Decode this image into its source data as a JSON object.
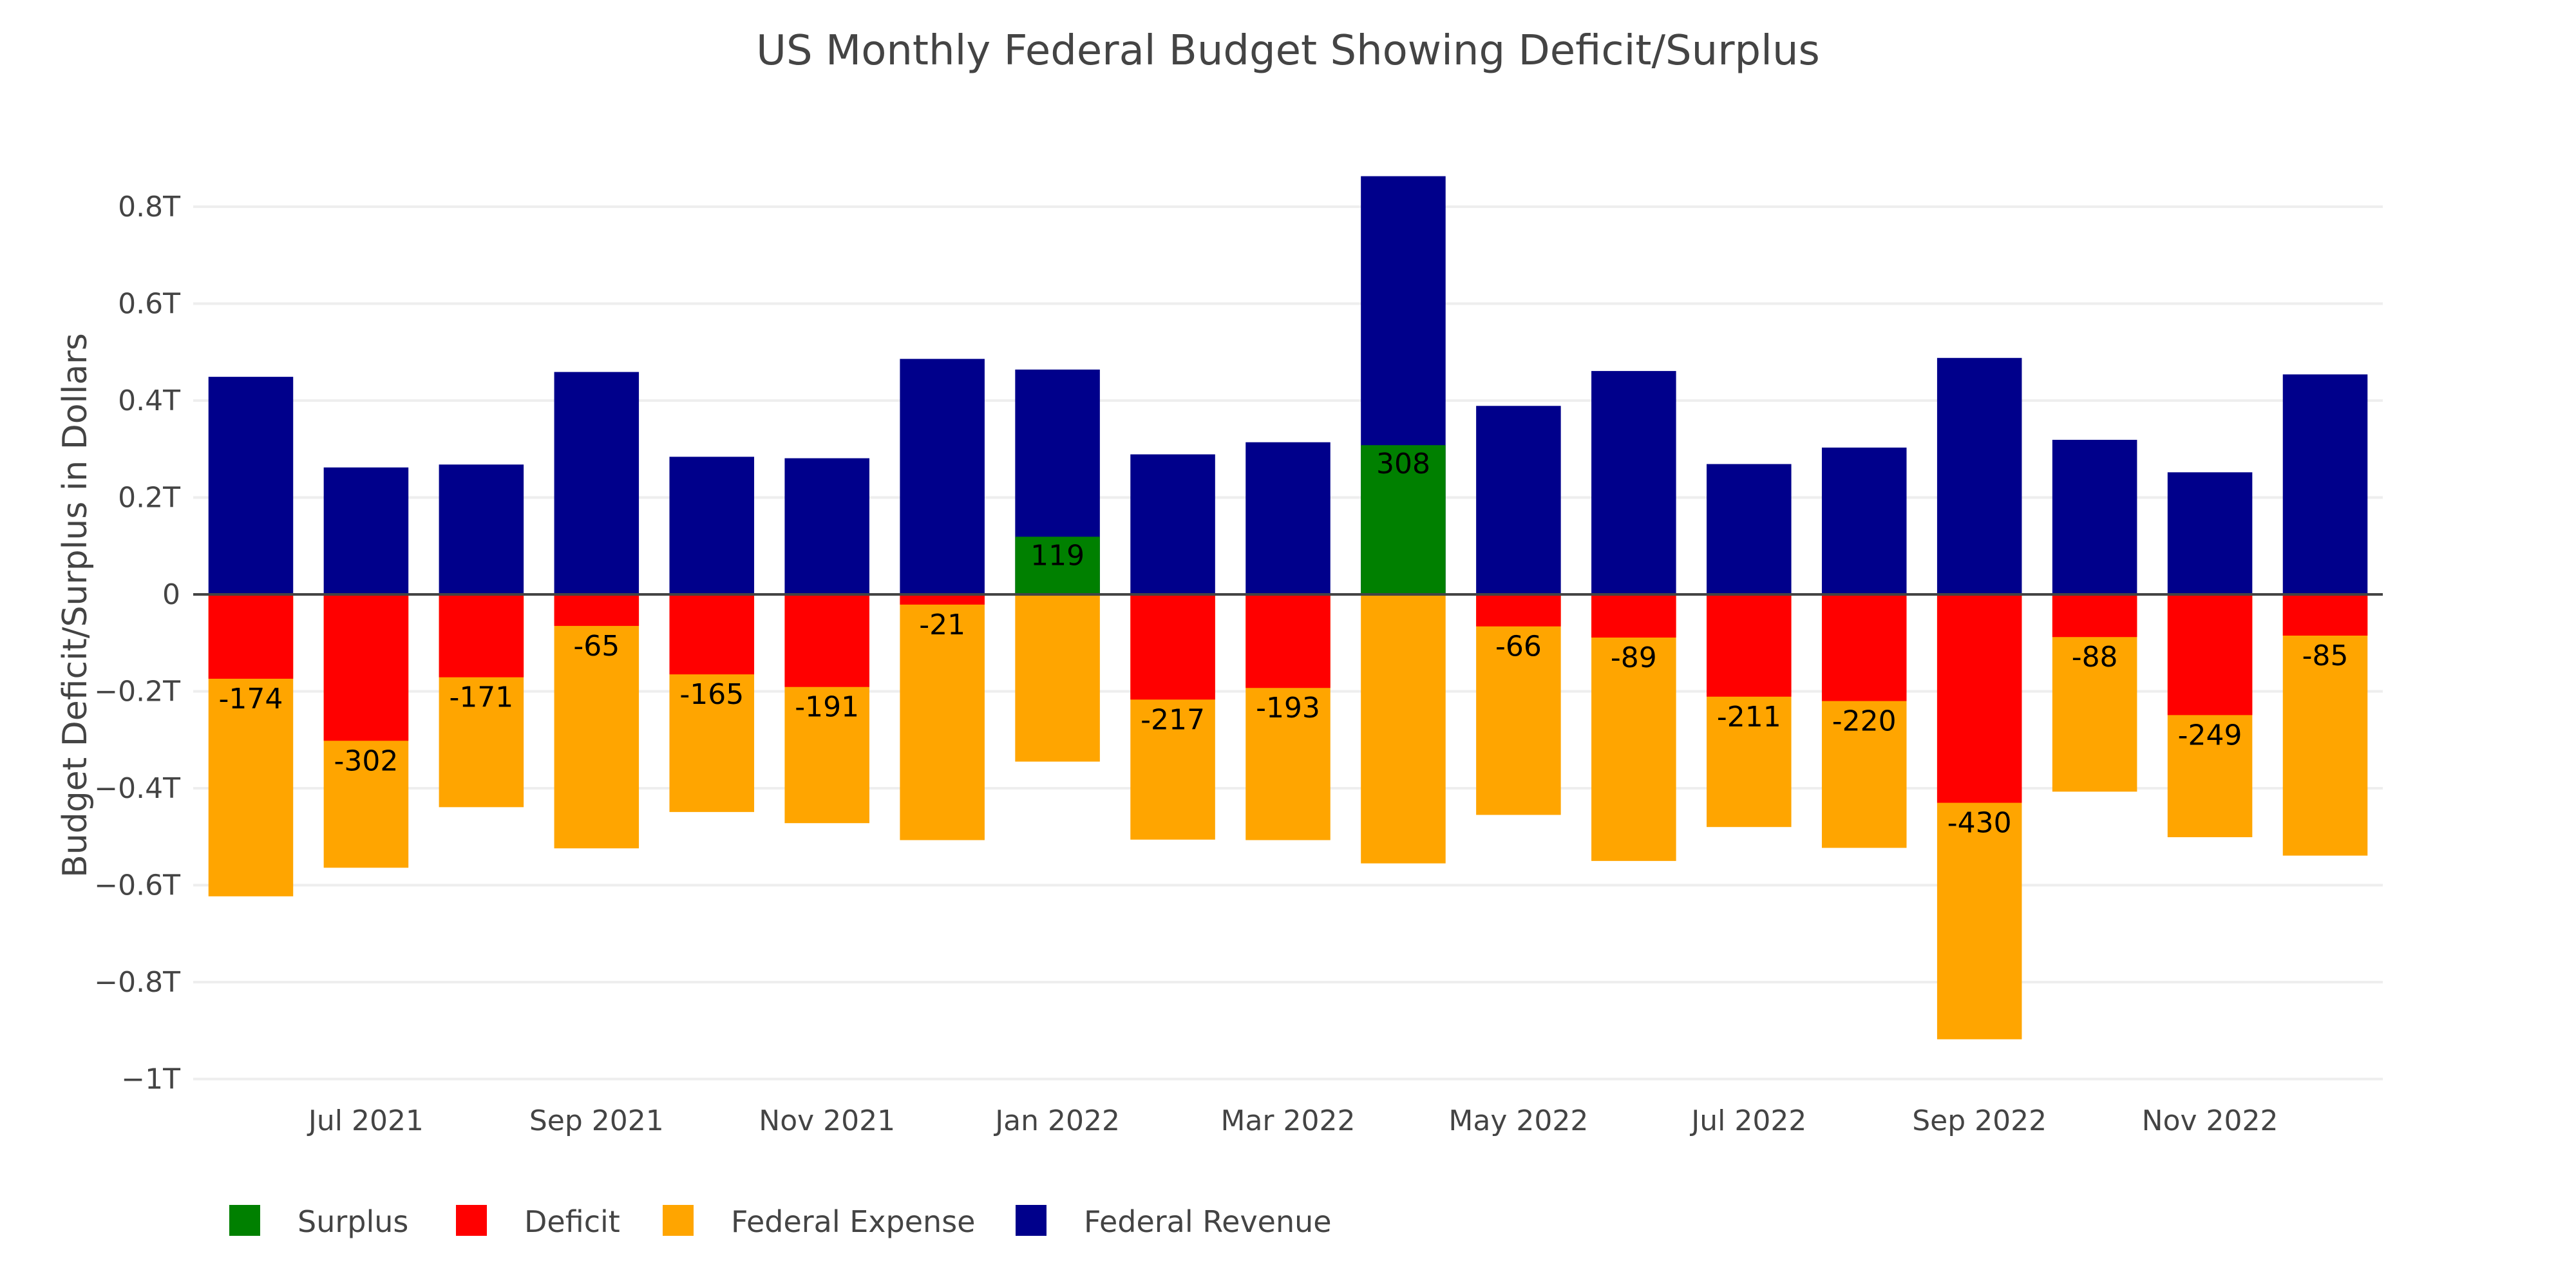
{
  "chart_data": {
    "type": "bar",
    "barmode": "overlay",
    "title": "US Monthly Federal Budget Showing Deficit/Surplus",
    "xlabel": "",
    "ylabel": "Budget Deficit/Surplus in Dollars",
    "ylim": [
      -1.02,
      0.89
    ],
    "yunit": "T",
    "y_ticks": [
      {
        "value": 0.8,
        "label": "0.8T"
      },
      {
        "value": 0.6,
        "label": "0.6T"
      },
      {
        "value": 0.4,
        "label": "0.4T"
      },
      {
        "value": 0.2,
        "label": "0.2T"
      },
      {
        "value": 0,
        "label": "0"
      },
      {
        "value": -0.2,
        "label": "−0.2T"
      },
      {
        "value": -0.4,
        "label": "−0.4T"
      },
      {
        "value": -0.6,
        "label": "−0.6T"
      },
      {
        "value": -0.8,
        "label": "−0.8T"
      },
      {
        "value": -1.0,
        "label": "−1T"
      }
    ],
    "grid": true,
    "categories": [
      "Jun 2021",
      "Jul 2021",
      "Aug 2021",
      "Sep 2021",
      "Oct 2021",
      "Nov 2021",
      "Dec 2021",
      "Jan 2022",
      "Feb 2022",
      "Mar 2022",
      "Apr 2022",
      "May 2022",
      "Jun 2022",
      "Jul 2022",
      "Aug 2022",
      "Sep 2022",
      "Oct 2022",
      "Nov 2022",
      "Dec 2022"
    ],
    "x_ticks": [
      {
        "category": "Jul 2021",
        "label": "Jul 2021"
      },
      {
        "category": "Sep 2021",
        "label": "Sep 2021"
      },
      {
        "category": "Nov 2021",
        "label": "Nov 2021"
      },
      {
        "category": "Jan 2022",
        "label": "Jan 2022"
      },
      {
        "category": "Mar 2022",
        "label": "Mar 2022"
      },
      {
        "category": "May 2022",
        "label": "May 2022"
      },
      {
        "category": "Jul 2022",
        "label": "Jul 2022"
      },
      {
        "category": "Sep 2022",
        "label": "Sep 2022"
      },
      {
        "category": "Nov 2022",
        "label": "Nov 2022"
      }
    ],
    "series": [
      {
        "name": "Federal Revenue",
        "key": "revenue",
        "color": "#00008B",
        "values": [
          0.449,
          0.262,
          0.268,
          0.459,
          0.284,
          0.281,
          0.486,
          0.464,
          0.289,
          0.314,
          0.863,
          0.389,
          0.461,
          0.269,
          0.303,
          0.488,
          0.319,
          0.252,
          0.454
        ]
      },
      {
        "name": "Federal Expense",
        "key": "expense",
        "color": "#FFA500",
        "values": [
          -0.623,
          -0.564,
          -0.439,
          -0.524,
          -0.449,
          -0.472,
          -0.507,
          -0.345,
          -0.506,
          -0.507,
          -0.555,
          -0.455,
          -0.55,
          -0.48,
          -0.523,
          -0.918,
          -0.407,
          -0.501,
          -0.539
        ]
      },
      {
        "name": "Deficit",
        "key": "deficit",
        "color": "#FF0000",
        "values": [
          -0.174,
          -0.302,
          -0.171,
          -0.065,
          -0.165,
          -0.191,
          -0.021,
          null,
          -0.217,
          -0.193,
          null,
          -0.066,
          -0.089,
          -0.211,
          -0.22,
          -0.43,
          -0.088,
          -0.249,
          -0.085
        ],
        "labels": [
          "-174",
          "-302",
          "-171",
          "-65",
          "-165",
          "-191",
          "-21",
          null,
          "-217",
          "-193",
          null,
          "-66",
          "-89",
          "-211",
          "-220",
          "-430",
          "-88",
          "-249",
          "-85"
        ]
      },
      {
        "name": "Surplus",
        "key": "surplus",
        "color": "#008000",
        "values": [
          null,
          null,
          null,
          null,
          null,
          null,
          null,
          0.119,
          null,
          null,
          0.308,
          null,
          null,
          null,
          null,
          null,
          null,
          null,
          null
        ],
        "labels": [
          null,
          null,
          null,
          null,
          null,
          null,
          null,
          "119",
          null,
          null,
          "308",
          null,
          null,
          null,
          null,
          null,
          null,
          null,
          null
        ]
      }
    ],
    "legend": {
      "position": "bottom-left",
      "orientation": "horizontal",
      "items": [
        {
          "name": "Surplus",
          "color": "#008000"
        },
        {
          "name": "Deficit",
          "color": "#FF0000"
        },
        {
          "name": "Federal Expense",
          "color": "#FFA500"
        },
        {
          "name": "Federal Revenue",
          "color": "#00008B"
        }
      ]
    }
  }
}
